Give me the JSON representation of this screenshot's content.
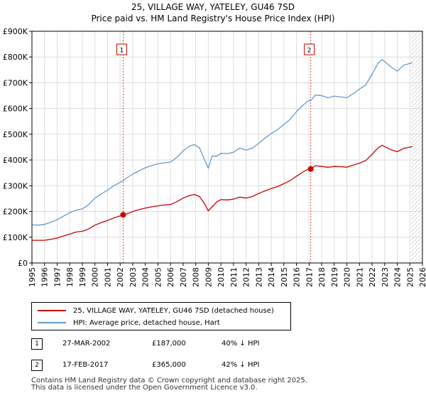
{
  "chart_data": {
    "type": "line",
    "title": "25, VILLAGE WAY, YATELEY, GU46 7SD",
    "subtitle": "Price paid vs. HM Land Registry's House Price Index (HPI)",
    "xlabel": "",
    "ylabel": "",
    "xlim": [
      1995,
      2026
    ],
    "ylim": [
      0,
      900000
    ],
    "x_ticks": [
      1995,
      1996,
      1997,
      1998,
      1999,
      2000,
      2001,
      2002,
      2003,
      2004,
      2005,
      2006,
      2007,
      2008,
      2009,
      2010,
      2011,
      2012,
      2013,
      2014,
      2015,
      2016,
      2017,
      2018,
      2019,
      2020,
      2021,
      2022,
      2023,
      2024,
      2025,
      2026
    ],
    "y_ticks": [
      0,
      100000,
      200000,
      300000,
      400000,
      500000,
      600000,
      700000,
      800000,
      900000
    ],
    "y_tick_labels": [
      "£0",
      "£100K",
      "£200K",
      "£300K",
      "£400K",
      "£500K",
      "£600K",
      "£700K",
      "£800K",
      "£900K"
    ],
    "grid": true,
    "series": [
      {
        "name": "25, VILLAGE WAY, YATELEY, GU46 7SD (detached house)",
        "color": "#cc0000",
        "x": [
          1995.0,
          1995.5,
          1996.0,
          1996.5,
          1997.0,
          1997.5,
          1998.0,
          1998.5,
          1999.0,
          1999.5,
          2000.0,
          2000.5,
          2001.0,
          2001.5,
          2002.0,
          2002.24,
          2002.5,
          2003.0,
          2003.5,
          2004.0,
          2004.5,
          2005.0,
          2005.5,
          2006.0,
          2006.5,
          2007.0,
          2007.5,
          2007.9,
          2008.3,
          2008.7,
          2009.0,
          2009.3,
          2009.7,
          2010.0,
          2010.5,
          2011.0,
          2011.5,
          2012.0,
          2012.5,
          2013.0,
          2013.5,
          2014.0,
          2014.5,
          2015.0,
          2015.5,
          2016.0,
          2016.5,
          2017.0,
          2017.13,
          2017.5,
          2018.0,
          2018.5,
          2019.0,
          2019.5,
          2020.0,
          2020.5,
          2021.0,
          2021.5,
          2022.0,
          2022.5,
          2022.8,
          2023.0,
          2023.5,
          2024.0,
          2024.5,
          2025.0,
          2025.2
        ],
        "values": [
          88000,
          88000,
          88000,
          92000,
          97000,
          105000,
          112000,
          120000,
          123000,
          132000,
          147000,
          157000,
          165000,
          175000,
          183000,
          187000,
          190000,
          200000,
          207000,
          213000,
          218000,
          222000,
          225000,
          227000,
          238000,
          252000,
          262000,
          266000,
          258000,
          230000,
          202000,
          218000,
          238000,
          246000,
          245000,
          248000,
          256000,
          252000,
          258000,
          270000,
          280000,
          289000,
          297000,
          308000,
          320000,
          337000,
          353000,
          366000,
          365000,
          378000,
          375000,
          372000,
          375000,
          374000,
          372000,
          380000,
          388000,
          398000,
          422000,
          448000,
          457000,
          452000,
          440000,
          432000,
          445000,
          450000,
          452000
        ]
      },
      {
        "name": "HPI: Average price, detached house, Hart",
        "color": "#6699cc",
        "x": [
          1995.0,
          1995.5,
          1996.0,
          1996.5,
          1997.0,
          1997.5,
          1998.0,
          1998.5,
          1999.0,
          1999.5,
          2000.0,
          2000.5,
          2001.0,
          2001.5,
          2002.0,
          2002.24,
          2002.5,
          2003.0,
          2003.5,
          2004.0,
          2004.5,
          2005.0,
          2005.5,
          2006.0,
          2006.5,
          2007.0,
          2007.5,
          2007.9,
          2008.3,
          2008.7,
          2009.0,
          2009.3,
          2009.7,
          2010.0,
          2010.5,
          2011.0,
          2011.5,
          2012.0,
          2012.5,
          2013.0,
          2013.5,
          2014.0,
          2014.5,
          2015.0,
          2015.5,
          2016.0,
          2016.5,
          2017.0,
          2017.13,
          2017.5,
          2018.0,
          2018.5,
          2019.0,
          2019.5,
          2020.0,
          2020.5,
          2021.0,
          2021.5,
          2022.0,
          2022.5,
          2022.8,
          2023.0,
          2023.5,
          2024.0,
          2024.5,
          2025.0,
          2025.2
        ],
        "values": [
          148000,
          147000,
          150000,
          158000,
          168000,
          182000,
          195000,
          205000,
          210000,
          226000,
          252000,
          268000,
          283000,
          300000,
          313000,
          320000,
          330000,
          345000,
          358000,
          370000,
          378000,
          385000,
          389000,
          392000,
          410000,
          435000,
          454000,
          460000,
          447000,
          400000,
          368000,
          415000,
          415000,
          426000,
          425000,
          430000,
          446000,
          438000,
          446000,
          465000,
          485000,
          503000,
          518000,
          538000,
          558000,
          588000,
          612000,
          632000,
          630000,
          652000,
          650000,
          642000,
          648000,
          645000,
          642000,
          658000,
          675000,
          692000,
          733000,
          778000,
          790000,
          782000,
          762000,
          745000,
          768000,
          775000,
          778000
        ]
      }
    ],
    "sales": [
      {
        "id": "1",
        "x": 2002.24,
        "price": 187000,
        "date": "27-MAR-2002",
        "price_label": "£187,000",
        "hpi_label": "40% ↓ HPI"
      },
      {
        "id": "2",
        "x": 2017.13,
        "price": 365000,
        "date": "17-FEB-2017",
        "price_label": "£365,000",
        "hpi_label": "42% ↓ HPI"
      }
    ],
    "forecast_from": 2025.1,
    "colors": {
      "grid": "#dddddd",
      "vline": "#cc0000",
      "hatch": "#888888"
    }
  },
  "footer": {
    "line1": "Contains HM Land Registry data © Crown copyright and database right 2025.",
    "line2": "This data is licensed under the Open Government Licence v3.0."
  }
}
